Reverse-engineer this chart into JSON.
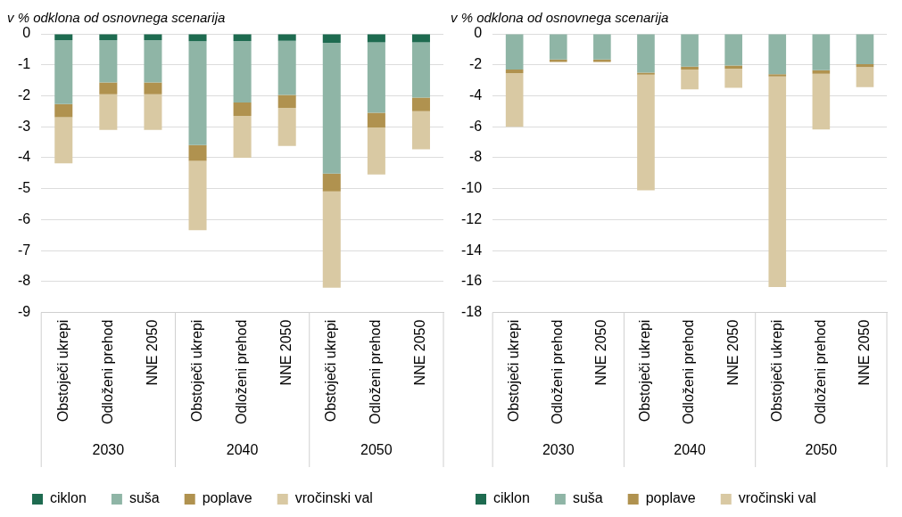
{
  "chart_data": [
    {
      "type": "bar",
      "stacked": true,
      "ylabel": "v % odklona od osnovnega scenarija",
      "categories": [
        "Obstoječi ukrepi",
        "Odloženi prehod",
        "NNE 2050",
        "Obstoječi ukrepi",
        "Odloženi prehod",
        "NNE 2050",
        "Obstoječi ukrepi",
        "Odloženi prehod",
        "NNE 2050"
      ],
      "annotations": [
        "2030",
        "2040",
        "2050"
      ],
      "series": [
        {
          "name": "ciklon",
          "color": "#1e6b50",
          "values": [
            -0.2,
            -0.2,
            -0.2,
            -0.24,
            -0.23,
            -0.22,
            -0.29,
            -0.27,
            -0.27
          ]
        },
        {
          "name": "suša",
          "color": "#8fb5a6",
          "values": [
            -2.07,
            -1.37,
            -1.37,
            -3.35,
            -1.99,
            -1.75,
            -4.22,
            -2.28,
            -1.79
          ]
        },
        {
          "name": "poplave",
          "color": "#b0924f",
          "values": [
            -0.42,
            -0.38,
            -0.38,
            -0.51,
            -0.43,
            -0.42,
            -0.58,
            -0.47,
            -0.44
          ]
        },
        {
          "name": "vročinski val",
          "color": "#d9c9a3",
          "values": [
            -1.49,
            -1.15,
            -1.15,
            -2.24,
            -1.35,
            -1.23,
            -3.11,
            -1.52,
            -1.23
          ]
        }
      ],
      "ylim": [
        -9,
        0
      ],
      "yticks": [
        -9,
        -8,
        -7,
        -6,
        -5,
        -4,
        -3,
        -2,
        -1,
        0
      ],
      "grid": "y",
      "legend": "bottom"
    },
    {
      "type": "bar",
      "stacked": true,
      "ylabel": "v % odklona od osnovnega scenarija",
      "categories": [
        "Obstoječi ukrepi",
        "Odloženi prehod",
        "NNE 2050",
        "Obstoječi ukrepi",
        "Odloženi prehod",
        "NNE 2050",
        "Obstoječi ukrepi",
        "Odloženi prehod",
        "NNE 2050"
      ],
      "annotations": [
        "2030",
        "2040",
        "2050"
      ],
      "series": [
        {
          "name": "ciklon",
          "color": "#1e6b50",
          "values": [
            0,
            0,
            0,
            0,
            0,
            0,
            0,
            0,
            0
          ]
        },
        {
          "name": "suša",
          "color": "#8fb5a6",
          "values": [
            -2.31,
            -1.65,
            -1.65,
            -2.51,
            -2.11,
            -2.04,
            -2.6,
            -2.35,
            -1.96
          ]
        },
        {
          "name": "poplave",
          "color": "#b0924f",
          "values": [
            -0.22,
            -0.17,
            -0.17,
            -0.13,
            -0.2,
            -0.2,
            -0.15,
            -0.23,
            -0.19
          ]
        },
        {
          "name": "vročinski val",
          "color": "#d9c9a3",
          "values": [
            -3.47,
            0,
            0,
            -7.46,
            -1.27,
            -1.25,
            -13.61,
            -3.6,
            -1.29
          ]
        }
      ],
      "ylim": [
        -18,
        0
      ],
      "yticks": [
        -18,
        -16,
        -14,
        -12,
        -10,
        -8,
        -6,
        -4,
        -2,
        0
      ],
      "grid": "y",
      "legend": "bottom"
    }
  ]
}
